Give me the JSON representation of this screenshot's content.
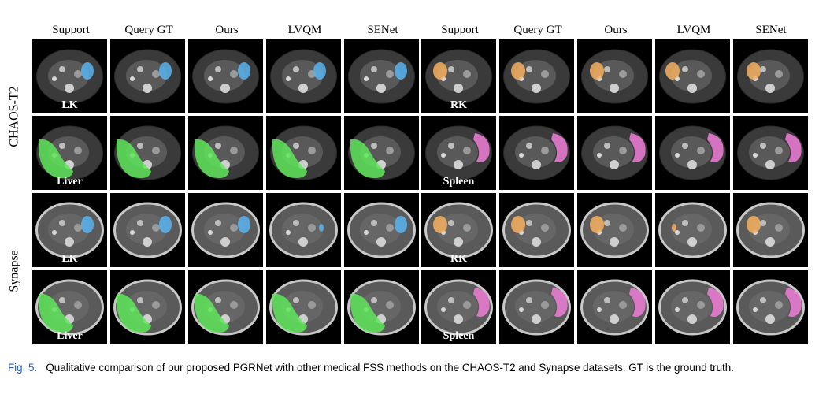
{
  "column_headers": [
    "Support",
    "Query GT",
    "Ours",
    "LVQM",
    "SENet",
    "Support",
    "Query GT",
    "Ours",
    "LVQM",
    "SENet"
  ],
  "dataset_labels": [
    "CHAOS-T2",
    "Synapse"
  ],
  "organ_labels": {
    "row1": [
      "LK",
      "RK"
    ],
    "row2": [
      "Liver",
      "Spleen"
    ],
    "row3": [
      "LK",
      "RK"
    ],
    "row4": [
      "Liver",
      "Spleen"
    ]
  },
  "colors": {
    "lk": "#5ab4f0",
    "rk": "#f5b060",
    "liver": "#5fe65a",
    "spleen": "#f07fd8",
    "caption_fig": "#1f5fbf"
  },
  "caption": {
    "fig": "Fig. 5.",
    "text": "Qualitative comparison of our proposed PGRNet with other medical FSS methods on the CHAOS-T2 and Synapse datasets. GT is the ground truth."
  }
}
